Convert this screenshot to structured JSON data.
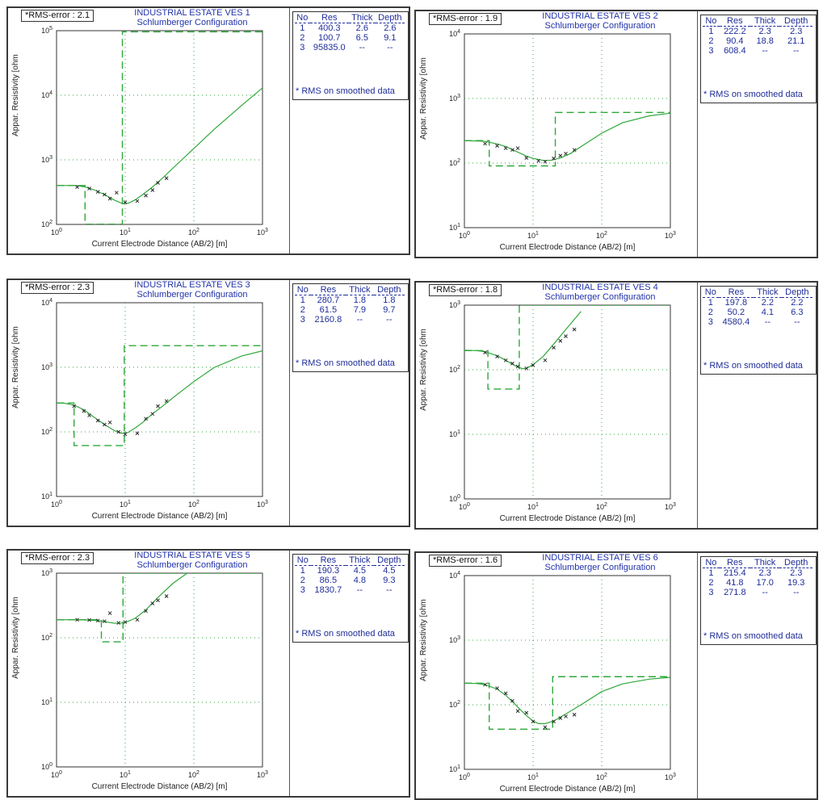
{
  "common": {
    "ylabel": "Appar. Resistivity [ohm",
    "xlabel": "Current Electrode Distance (AB/2) [m]",
    "table_headers": [
      "No",
      "Res",
      "Thick",
      "Depth"
    ],
    "rms_note": "* RMS on smoothed data",
    "subtitle": "Schlumberger Configuration",
    "curve_color": "#2fa83a",
    "text_color": "#1f2d99"
  },
  "chart_data": [
    {
      "type": "line",
      "title": "INDUSTRIAL ESTATE VES 1",
      "subtitle": "Schlumberger Configuration",
      "rms_error": "*RMS-error : 2.1",
      "xlabel": "Current Electrode Distance (AB/2) [m]",
      "ylabel": "Appar. Resistivity [ohm",
      "xscale": "log",
      "yscale": "log",
      "xlim": [
        1,
        1000
      ],
      "ylim": [
        100,
        100000
      ],
      "x_ticks": [
        "10^0",
        "10^1",
        "10^2",
        "10^3"
      ],
      "y_ticks": [
        "10^2",
        "10^3",
        "10^4",
        "10^5"
      ],
      "grid": true,
      "layers": [
        {
          "no": "1",
          "res": "400.3",
          "thick": "2.6",
          "depth": "2.6",
          "res_val": 400.3,
          "depth_val": 2.6
        },
        {
          "no": "2",
          "res": "100.7",
          "thick": "6.5",
          "depth": "9.1",
          "res_val": 100.7,
          "depth_val": 9.1
        },
        {
          "no": "3",
          "res": "95835.0",
          "thick": "--",
          "depth": "--",
          "res_val": 95835.0
        }
      ],
      "curve": {
        "x": [
          1,
          1.5,
          2,
          2.6,
          3.5,
          5,
          7,
          9,
          11,
          14,
          18,
          25,
          35,
          50,
          100,
          200,
          500,
          1000
        ],
        "y": [
          400,
          400,
          398,
          380,
          345,
          290,
          238,
          212,
          212,
          240,
          290,
          380,
          520,
          750,
          1500,
          3000,
          7000,
          13000
        ]
      },
      "observed": {
        "x": [
          2,
          3,
          4,
          5,
          6,
          7.5,
          10,
          15,
          20,
          25,
          30,
          40
        ],
        "y": [
          380,
          360,
          320,
          290,
          250,
          310,
          220,
          230,
          280,
          340,
          440,
          520
        ]
      }
    },
    {
      "type": "line",
      "title": "INDUSTRIAL ESTATE VES 2",
      "subtitle": "Schlumberger Configuration",
      "rms_error": "*RMS-error : 1.9",
      "xlabel": "Current Electrode Distance (AB/2) [m]",
      "ylabel": "Appar. Resistivity [ohm",
      "xscale": "log",
      "yscale": "log",
      "xlim": [
        1,
        1000
      ],
      "ylim": [
        10,
        10000
      ],
      "x_ticks": [
        "10^0",
        "10^1",
        "10^2",
        "10^3"
      ],
      "y_ticks": [
        "10^1",
        "10^2",
        "10^3",
        "10^4"
      ],
      "grid": true,
      "layers": [
        {
          "no": "1",
          "res": "222.2",
          "thick": "2.3",
          "depth": "2.3",
          "res_val": 222.2,
          "depth_val": 2.3
        },
        {
          "no": "2",
          "res": "90.4",
          "thick": "18.8",
          "depth": "21.1",
          "res_val": 90.4,
          "depth_val": 21.1
        },
        {
          "no": "3",
          "res": "608.4",
          "thick": "--",
          "depth": "--",
          "res_val": 608.4
        }
      ],
      "curve": {
        "x": [
          1,
          1.5,
          2,
          3,
          4,
          5,
          6,
          7,
          8,
          10,
          14,
          18,
          25,
          35,
          50,
          100,
          200,
          500,
          1000
        ],
        "y": [
          222,
          220,
          216,
          198,
          180,
          162,
          148,
          137,
          128,
          118,
          110,
          110,
          120,
          140,
          180,
          290,
          420,
          540,
          590
        ]
      },
      "observed": {
        "x": [
          2,
          3,
          4,
          5,
          6,
          8,
          12,
          15,
          20,
          25,
          30,
          40
        ],
        "y": [
          200,
          185,
          170,
          160,
          170,
          120,
          108,
          105,
          118,
          130,
          140,
          160
        ]
      }
    },
    {
      "type": "line",
      "title": "INDUSTRIAL ESTATE VES 3",
      "subtitle": "Schlumberger Configuration",
      "rms_error": "*RMS-error : 2.3",
      "xlabel": "Current Electrode Distance (AB/2) [m]",
      "ylabel": "Appar. Resistivity [ohm",
      "xscale": "log",
      "yscale": "log",
      "xlim": [
        1,
        1000
      ],
      "ylim": [
        10,
        10000
      ],
      "x_ticks": [
        "10^0",
        "10^1",
        "10^2",
        "10^3"
      ],
      "y_ticks": [
        "10^1",
        "10^2",
        "10^3",
        "10^4"
      ],
      "grid": true,
      "layers": [
        {
          "no": "1",
          "res": "280.7",
          "thick": "1.8",
          "depth": "1.8",
          "res_val": 280.7,
          "depth_val": 1.8
        },
        {
          "no": "2",
          "res": "61.5",
          "thick": "7.9",
          "depth": "9.7",
          "res_val": 61.5,
          "depth_val": 9.7
        },
        {
          "no": "3",
          "res": "2160.8",
          "thick": "--",
          "depth": "--",
          "res_val": 2160.8
        }
      ],
      "curve": {
        "x": [
          1,
          1.3,
          1.8,
          2.5,
          3.5,
          5,
          7,
          9,
          11,
          14,
          18,
          25,
          35,
          50,
          100,
          200,
          500,
          1000
        ],
        "y": [
          280,
          278,
          260,
          220,
          170,
          130,
          104,
          95,
          98,
          115,
          140,
          190,
          250,
          340,
          600,
          1000,
          1500,
          1800
        ]
      },
      "observed": {
        "x": [
          1.8,
          2.5,
          3,
          4,
          5,
          6,
          8,
          10,
          15,
          20,
          25,
          30,
          40
        ],
        "y": [
          250,
          210,
          180,
          150,
          130,
          140,
          100,
          92,
          95,
          160,
          190,
          250,
          300
        ]
      }
    },
    {
      "type": "line",
      "title": "INDUSTRIAL ESTATE VES 4",
      "subtitle": "Schlumberger Configuration",
      "rms_error": "*RMS-error : 1.8",
      "xlabel": "Current Electrode Distance (AB/2) [m]",
      "ylabel": "Appar. Resistivity [ohm",
      "xscale": "log",
      "yscale": "log",
      "xlim": [
        1,
        1000
      ],
      "ylim": [
        1,
        1000
      ],
      "x_ticks": [
        "10^0",
        "10^1",
        "10^2",
        "10^3"
      ],
      "y_ticks": [
        "10^0",
        "10^1",
        "10^2",
        "10^3"
      ],
      "grid": true,
      "layers": [
        {
          "no": "1",
          "res": "197.8",
          "thick": "2.2",
          "depth": "2.2",
          "res_val": 197.8,
          "depth_val": 2.2
        },
        {
          "no": "2",
          "res": "50.2",
          "thick": "4.1",
          "depth": "6.3",
          "res_val": 50.2,
          "depth_val": 6.3
        },
        {
          "no": "3",
          "res": "4580.4",
          "thick": "--",
          "depth": "--",
          "res_val": 4580.4
        }
      ],
      "curve": {
        "x": [
          1,
          1.5,
          2,
          3,
          4,
          5,
          6,
          7,
          8,
          10,
          14,
          20,
          30,
          50
        ],
        "y": [
          200,
          198,
          190,
          165,
          140,
          122,
          110,
          104,
          105,
          120,
          160,
          250,
          420,
          800
        ]
      },
      "observed": {
        "x": [
          2,
          3,
          4,
          5,
          6,
          8,
          10,
          15,
          20,
          25,
          30,
          40
        ],
        "y": [
          185,
          160,
          140,
          125,
          112,
          105,
          118,
          140,
          220,
          280,
          330,
          420
        ]
      }
    },
    {
      "type": "line",
      "title": "INDUSTRIAL ESTATE VES 5",
      "subtitle": "Schlumberger Configuration",
      "rms_error": "*RMS-error : 2.3",
      "xlabel": "Current Electrode Distance (AB/2) [m]",
      "ylabel": "Appar. Resistivity [ohm",
      "xscale": "log",
      "yscale": "log",
      "xlim": [
        1,
        1000
      ],
      "ylim": [
        1,
        1000
      ],
      "x_ticks": [
        "10^0",
        "10^1",
        "10^2",
        "10^3"
      ],
      "y_ticks": [
        "10^0",
        "10^1",
        "10^2",
        "10^3"
      ],
      "grid": true,
      "layers": [
        {
          "no": "1",
          "res": "190.3",
          "thick": "4.5",
          "depth": "4.5",
          "res_val": 190.3,
          "depth_val": 4.5
        },
        {
          "no": "2",
          "res": "86.5",
          "thick": "4.8",
          "depth": "9.3",
          "res_val": 86.5,
          "depth_val": 9.3
        },
        {
          "no": "3",
          "res": "1830.7",
          "thick": "--",
          "depth": "--",
          "res_val": 1830.7
        }
      ],
      "curve": {
        "x": [
          1,
          2,
          3,
          4,
          5,
          6,
          7,
          8,
          10,
          14,
          20,
          30,
          50,
          80
        ],
        "y": [
          190,
          190,
          188,
          184,
          178,
          172,
          168,
          167,
          172,
          200,
          270,
          420,
          700,
          1000
        ]
      },
      "observed": {
        "x": [
          2,
          3,
          4,
          5,
          6,
          8,
          10,
          15,
          20,
          25,
          30,
          40
        ],
        "y": [
          190,
          188,
          184,
          180,
          240,
          170,
          175,
          190,
          260,
          340,
          380,
          440
        ]
      }
    },
    {
      "type": "line",
      "title": "INDUSTRIAL ESTATE VES 6",
      "subtitle": "Schlumberger Configuration",
      "rms_error": "*RMS-error : 1.6",
      "xlabel": "Current Electrode Distance (AB/2) [m]",
      "ylabel": "Appar. Resistivity [ohm",
      "xscale": "log",
      "yscale": "log",
      "xlim": [
        1,
        1000
      ],
      "ylim": [
        10,
        10000
      ],
      "x_ticks": [
        "10^0",
        "10^1",
        "10^2",
        "10^3"
      ],
      "y_ticks": [
        "10^1",
        "10^2",
        "10^3",
        "10^4"
      ],
      "grid": true,
      "layers": [
        {
          "no": "1",
          "res": "215.4",
          "thick": "2.3",
          "depth": "2.3",
          "res_val": 215.4,
          "depth_val": 2.3
        },
        {
          "no": "2",
          "res": "41.8",
          "thick": "17.0",
          "depth": "19.3",
          "res_val": 41.8,
          "depth_val": 19.3
        },
        {
          "no": "3",
          "res": "271.8",
          "thick": "--",
          "depth": "--",
          "res_val": 271.8
        }
      ],
      "curve": {
        "x": [
          1,
          1.5,
          2,
          3,
          4,
          5,
          6,
          8,
          10,
          12,
          15,
          20,
          30,
          50,
          100,
          200,
          500,
          1000
        ],
        "y": [
          215,
          213,
          205,
          175,
          140,
          112,
          92,
          68,
          56,
          51,
          51,
          56,
          72,
          100,
          160,
          210,
          250,
          265
        ]
      },
      "observed": {
        "x": [
          2,
          3,
          4,
          5,
          6,
          8,
          10,
          15,
          20,
          25,
          30,
          40
        ],
        "y": [
          205,
          180,
          150,
          115,
          80,
          75,
          55,
          45,
          55,
          62,
          66,
          70
        ]
      }
    }
  ]
}
